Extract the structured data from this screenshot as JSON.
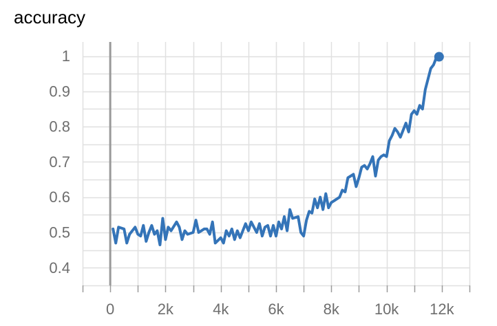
{
  "chart_data": {
    "type": "line",
    "title": "accuracy",
    "xlabel": "",
    "ylabel": "",
    "xlim": [
      -1000,
      13000
    ],
    "ylim": [
      0.35,
      1.04
    ],
    "grid": true,
    "x_ticks": [
      0,
      2000,
      4000,
      6000,
      8000,
      10000,
      12000
    ],
    "x_tick_labels": [
      "0",
      "2k",
      "4k",
      "6k",
      "8k",
      "10k",
      "12k"
    ],
    "y_ticks": [
      0.4,
      0.5,
      0.6,
      0.7,
      0.8,
      0.9,
      1.0
    ],
    "y_tick_labels": [
      "0.4",
      "0.5",
      "0.6",
      "0.7",
      "0.8",
      "0.9",
      "1"
    ],
    "colors": {
      "line": "#3474b8",
      "grid": "#e0e0e0",
      "axis": "#9a9a9a",
      "zero_line": "#999999"
    },
    "series": [
      {
        "x": [
          100,
          200,
          300,
          500,
          600,
          700,
          900,
          1000,
          1100,
          1200,
          1300,
          1400,
          1500,
          1600,
          1700,
          1800,
          1900,
          2000,
          2100,
          2200,
          2400,
          2500,
          2600,
          2700,
          2800,
          3000,
          3100,
          3200,
          3400,
          3500,
          3600,
          3700,
          3800,
          4000,
          4100,
          4200,
          4300,
          4400,
          4500,
          4600,
          4700,
          4900,
          5000,
          5100,
          5200,
          5300,
          5400,
          5500,
          5600,
          5700,
          5800,
          5900,
          6000,
          6100,
          6200,
          6300,
          6400,
          6500,
          6600,
          6800,
          6900,
          7000,
          7100,
          7200,
          7300,
          7400,
          7500,
          7600,
          7700,
          7800,
          7900,
          8000,
          8100,
          8300,
          8400,
          8500,
          8600,
          8700,
          8800,
          8900,
          9000,
          9100,
          9200,
          9300,
          9400,
          9500,
          9600,
          9700,
          9800,
          9900,
          10000,
          10100,
          10200,
          10300,
          10400,
          10500,
          10700,
          10800,
          10900,
          11000,
          11100,
          11200,
          11300,
          11400,
          11500,
          11600,
          11700,
          11800,
          11900
        ],
        "values": [
          0.51,
          0.47,
          0.515,
          0.51,
          0.47,
          0.495,
          0.515,
          0.495,
          0.49,
          0.52,
          0.475,
          0.5,
          0.52,
          0.495,
          0.505,
          0.465,
          0.54,
          0.48,
          0.515,
          0.505,
          0.53,
          0.515,
          0.48,
          0.505,
          0.495,
          0.5,
          0.535,
          0.5,
          0.51,
          0.51,
          0.495,
          0.53,
          0.47,
          0.485,
          0.47,
          0.505,
          0.49,
          0.51,
          0.48,
          0.505,
          0.485,
          0.525,
          0.505,
          0.53,
          0.515,
          0.5,
          0.525,
          0.49,
          0.515,
          0.52,
          0.49,
          0.52,
          0.49,
          0.53,
          0.51,
          0.545,
          0.505,
          0.565,
          0.54,
          0.545,
          0.5,
          0.49,
          0.535,
          0.56,
          0.555,
          0.595,
          0.57,
          0.6,
          0.565,
          0.61,
          0.57,
          0.585,
          0.59,
          0.6,
          0.62,
          0.615,
          0.655,
          0.66,
          0.665,
          0.63,
          0.655,
          0.685,
          0.69,
          0.68,
          0.695,
          0.715,
          0.66,
          0.705,
          0.715,
          0.72,
          0.715,
          0.76,
          0.775,
          0.795,
          0.785,
          0.77,
          0.81,
          0.785,
          0.835,
          0.845,
          0.835,
          0.86,
          0.85,
          0.905,
          0.935,
          0.965,
          0.975,
          0.995,
          0.998
        ]
      }
    ]
  }
}
